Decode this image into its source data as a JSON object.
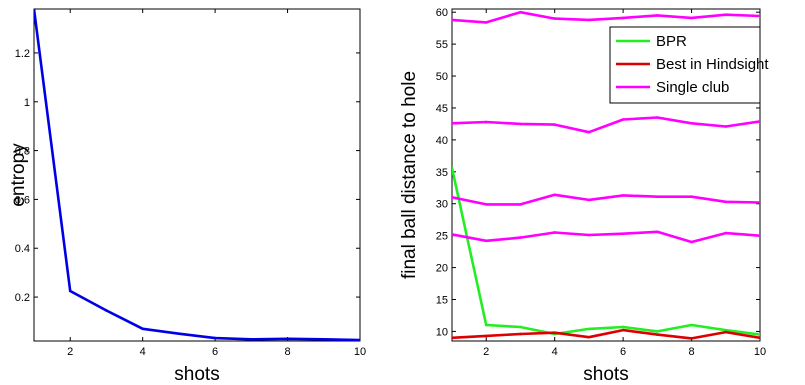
{
  "chart_data": [
    {
      "type": "line",
      "xlabel": "shots",
      "ylabel": "entropy",
      "xlim": [
        1,
        10
      ],
      "ylim": [
        0.02,
        1.38
      ],
      "xticks": [
        2,
        4,
        6,
        8,
        10
      ],
      "yticks": [
        0.2,
        0.4,
        0.6,
        0.8,
        1,
        1.2
      ],
      "grid": false,
      "series": [
        {
          "color": "#0000e6",
          "x": [
            1,
            2,
            3,
            4,
            5,
            6,
            7,
            8,
            9,
            10
          ],
          "y": [
            1.38,
            0.225,
            0.145,
            0.07,
            0.05,
            0.032,
            0.027,
            0.029,
            0.027,
            0.024
          ]
        }
      ]
    },
    {
      "type": "line",
      "xlabel": "shots",
      "ylabel": "final ball distance to hole",
      "xlim": [
        1,
        10
      ],
      "ylim": [
        8.5,
        60.5
      ],
      "xticks": [
        2,
        4,
        6,
        8,
        10
      ],
      "yticks": [
        10,
        15,
        20,
        25,
        30,
        35,
        40,
        45,
        50,
        55,
        60
      ],
      "grid": false,
      "legend": "top-right",
      "series": [
        {
          "name": "BPR",
          "color": "#22ee22",
          "x": [
            1,
            2,
            3,
            4,
            5,
            6,
            7,
            8,
            9,
            10
          ],
          "y": [
            35.6,
            11.0,
            10.7,
            9.6,
            10.4,
            10.7,
            10.0,
            11.0,
            10.2,
            9.5
          ]
        },
        {
          "name": "Best in Hindsight",
          "color": "#dd0000",
          "x": [
            1,
            2,
            3,
            4,
            5,
            6,
            7,
            8,
            9,
            10
          ],
          "y": [
            9.0,
            9.3,
            9.6,
            9.8,
            9.1,
            10.2,
            9.5,
            8.9,
            9.9,
            9.0
          ]
        },
        {
          "name": "Single club",
          "color": "#ff00ff",
          "x": [
            1,
            2,
            3,
            4,
            5,
            6,
            7,
            8,
            9,
            10
          ],
          "y": [
            58.8,
            58.4,
            60.0,
            59.0,
            58.8,
            59.1,
            59.5,
            59.1,
            59.6,
            59.4
          ]
        },
        {
          "color": "#ff00ff",
          "x": [
            1,
            2,
            3,
            4,
            5,
            6,
            7,
            8,
            9,
            10
          ],
          "y": [
            42.6,
            42.8,
            42.5,
            42.4,
            41.2,
            43.2,
            43.5,
            42.6,
            42.1,
            42.9
          ]
        },
        {
          "color": "#ff00ff",
          "x": [
            1,
            2,
            3,
            4,
            5,
            6,
            7,
            8,
            9,
            10
          ],
          "y": [
            31.0,
            29.9,
            29.9,
            31.4,
            30.6,
            31.3,
            31.1,
            31.1,
            30.3,
            30.2
          ]
        },
        {
          "color": "#ff00ff",
          "x": [
            1,
            2,
            3,
            4,
            5,
            6,
            7,
            8,
            9,
            10
          ],
          "y": [
            25.2,
            24.2,
            24.7,
            25.5,
            25.1,
            25.3,
            25.6,
            24.0,
            25.4,
            25.0
          ]
        }
      ]
    }
  ]
}
